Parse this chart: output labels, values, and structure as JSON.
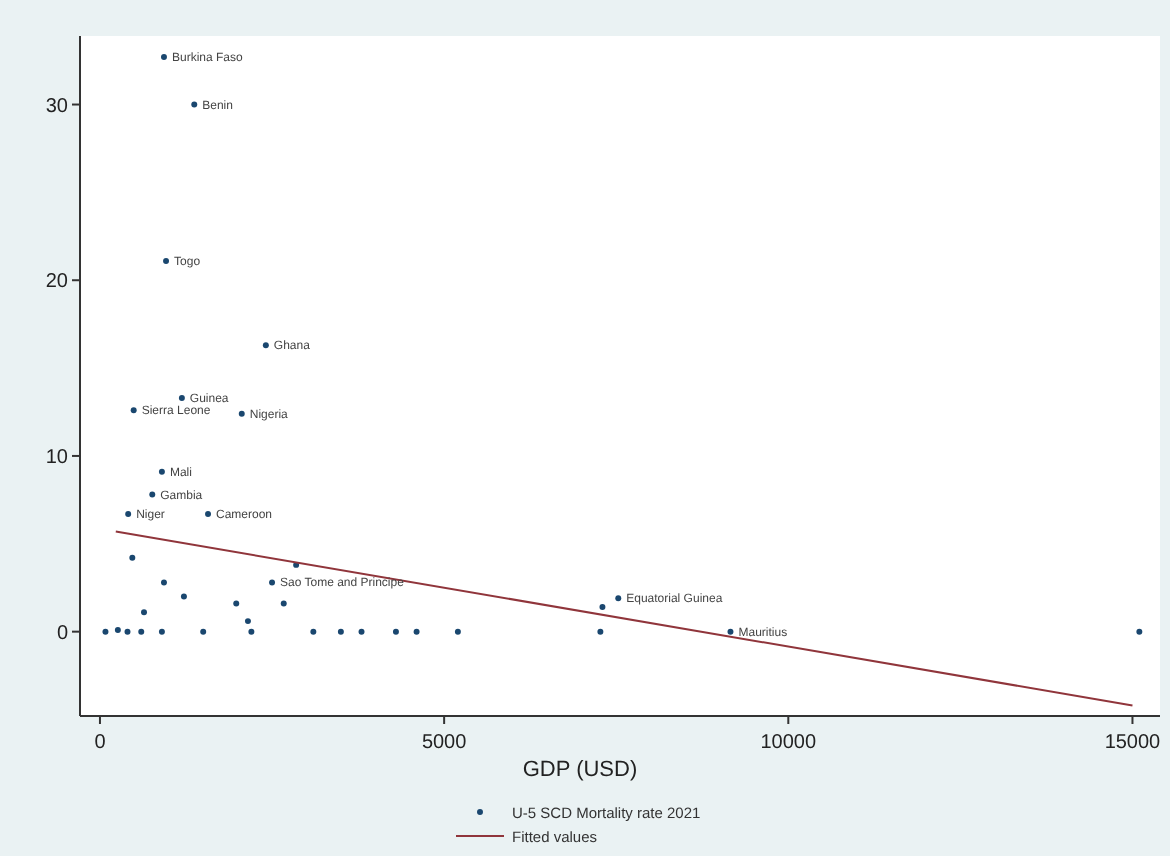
{
  "chart_data": {
    "type": "scatter",
    "xlabel": "GDP (USD)",
    "xlim": [
      -290,
      15400
    ],
    "ylim": [
      -4.8,
      33.9
    ],
    "xticks": [
      0,
      5000,
      10000,
      15000
    ],
    "yticks": [
      0,
      10,
      20,
      30
    ],
    "grid": false,
    "legend": "bottom",
    "series": [
      {
        "name": "U-5 SCD Mortality rate 2021",
        "marker": "circle",
        "color": "#1a476f",
        "x": [
          930,
          1370,
          960,
          2410,
          1190,
          490,
          2060,
          900,
          760,
          410,
          1570,
          470,
          2850,
          2500,
          930,
          1220,
          1980,
          2670,
          640,
          2150,
          260,
          7530,
          7300,
          7270,
          9160,
          15100,
          80,
          400,
          600,
          900,
          1500,
          2200,
          3100,
          3500,
          3800,
          4300,
          4600,
          5200
        ],
        "values": [
          32.7,
          30.0,
          21.1,
          16.3,
          13.3,
          12.6,
          12.4,
          9.1,
          7.8,
          6.7,
          6.7,
          4.2,
          3.8,
          2.8,
          2.8,
          2.0,
          1.6,
          1.6,
          1.1,
          0.6,
          0.1,
          1.9,
          1.4,
          0.0,
          0.0,
          0.0,
          0.0,
          0.0,
          0.0,
          0.0,
          0.0,
          0.0,
          0.0,
          0.0,
          0.0,
          0.0,
          0.0,
          0.0
        ]
      },
      {
        "name": "Fitted values",
        "type": "line",
        "marker": "none",
        "color": "#90353b",
        "x": [
          230,
          15000
        ],
        "values": [
          5.7,
          -4.2
        ]
      }
    ],
    "annotations": [
      {
        "text": "Burkina Faso",
        "x": 930,
        "y": 32.7
      },
      {
        "text": "Benin",
        "x": 1370,
        "y": 30.0
      },
      {
        "text": "Togo",
        "x": 960,
        "y": 21.1
      },
      {
        "text": "Ghana",
        "x": 2410,
        "y": 16.3
      },
      {
        "text": "Guinea",
        "x": 1190,
        "y": 13.3
      },
      {
        "text": "Sierra Leone",
        "x": 490,
        "y": 12.6
      },
      {
        "text": "Nigeria",
        "x": 2060,
        "y": 12.4
      },
      {
        "text": "Mali",
        "x": 900,
        "y": 9.1
      },
      {
        "text": "Gambia",
        "x": 760,
        "y": 7.8
      },
      {
        "text": "Niger",
        "x": 410,
        "y": 6.7
      },
      {
        "text": "Cameroon",
        "x": 1570,
        "y": 6.7
      },
      {
        "text": "Sao Tome and Principe",
        "x": 2500,
        "y": 2.8
      },
      {
        "text": "Equatorial Guinea",
        "x": 7530,
        "y": 1.9
      },
      {
        "text": "Mauritius",
        "x": 9160,
        "y": 0.0
      }
    ]
  }
}
